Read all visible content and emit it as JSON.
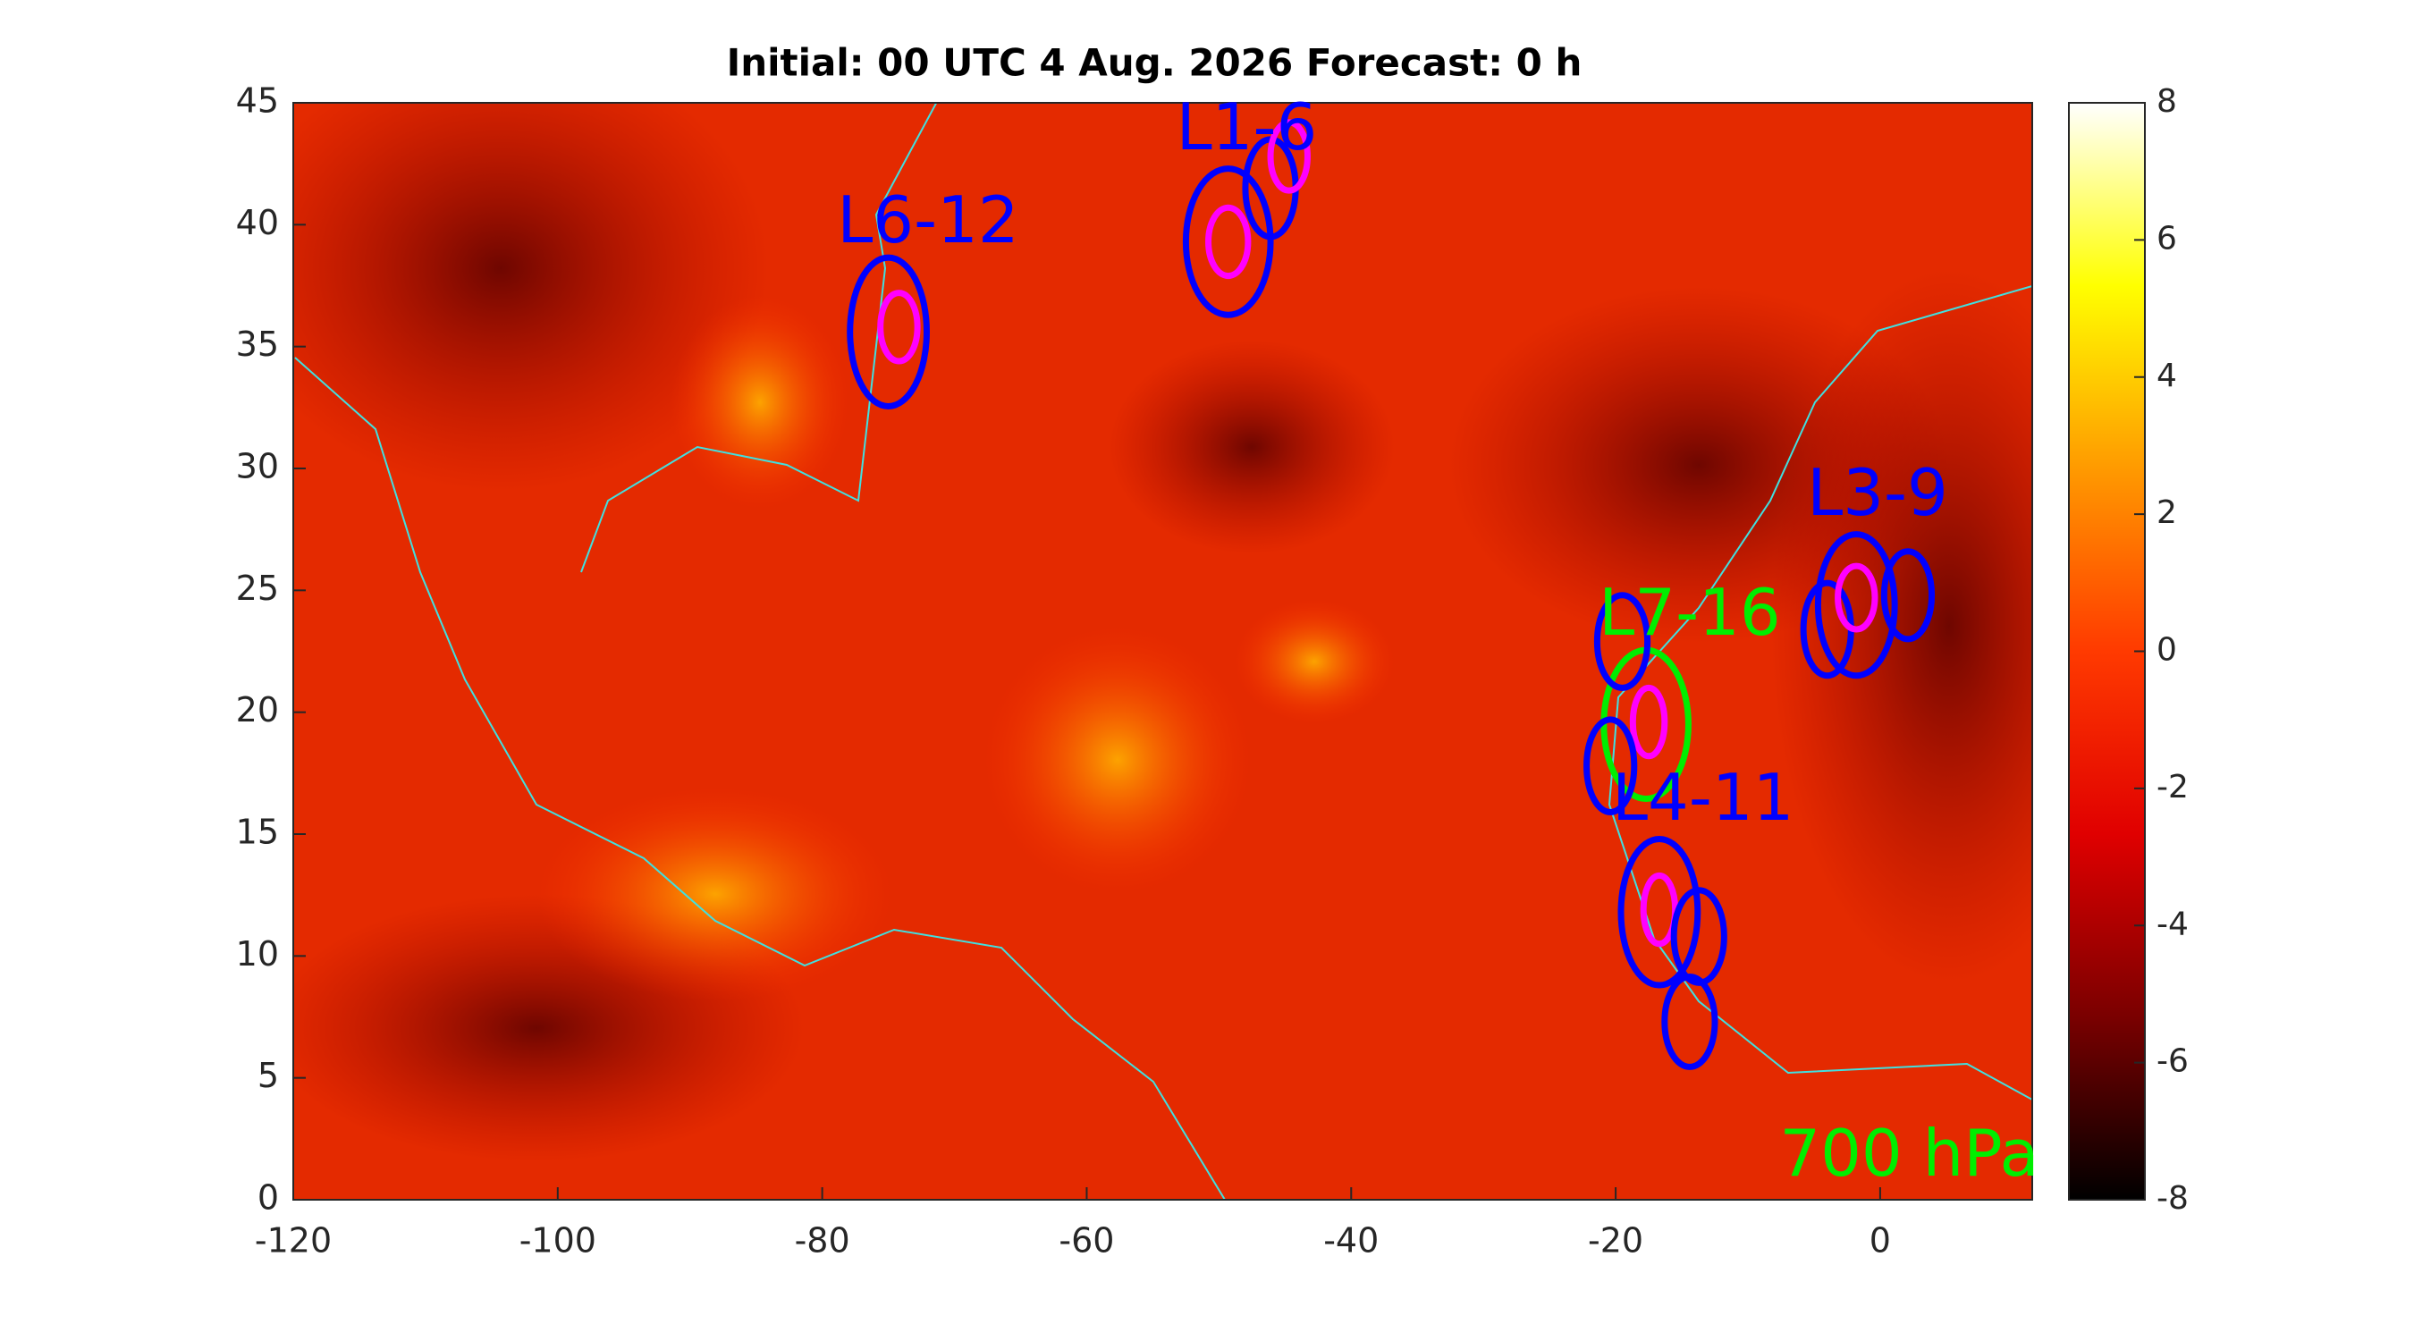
{
  "chart_data": {
    "type": "map",
    "title": "Initial: 00 UTC 4 Aug. 2026 Forecast: 0 h",
    "xlim": [
      -120,
      11.5
    ],
    "ylim": [
      0,
      45
    ],
    "xticks": [
      -120,
      -100,
      -80,
      -60,
      -40,
      -20,
      0
    ],
    "yticks": [
      0,
      5,
      10,
      15,
      20,
      25,
      30,
      35,
      40,
      45
    ],
    "clim": [
      -8,
      8
    ],
    "cticks": [
      -8,
      -6,
      -4,
      -2,
      0,
      2,
      4,
      6,
      8
    ],
    "colormap": [
      "#000000",
      "#7a0000",
      "#e00000",
      "#ff3a00",
      "#ff9a00",
      "#ffff00",
      "#ffffff"
    ],
    "annotations": [
      {
        "text": "L6-12",
        "lon": -72,
        "lat": 40,
        "color": "#0000ff"
      },
      {
        "text": "L1-6",
        "lon": -47.9,
        "lat": 43.8,
        "color": "#0000ff"
      },
      {
        "text": "L3-9",
        "lon": -0.2,
        "lat": 28.8,
        "color": "#0000ff"
      },
      {
        "text": "L7-16",
        "lon": -14.4,
        "lat": 23.9,
        "color": "#00ee00"
      },
      {
        "text": "L4-11",
        "lon": -13.4,
        "lat": 16.3,
        "color": "#0000ff"
      },
      {
        "text": "700 hPa",
        "lon": 2.2,
        "lat": 1.7,
        "color": "#00ee00"
      }
    ],
    "ellipses": [
      {
        "lon": -75.0,
        "lat": 35.6,
        "rx": 2.9,
        "ry": 3.05,
        "color": "#0000ff"
      },
      {
        "lon": -74.2,
        "lat": 35.8,
        "rx": 1.4,
        "ry": 1.4,
        "color": "#ff00ff"
      },
      {
        "lon": -49.3,
        "lat": 39.3,
        "rx": 3.2,
        "ry": 3.0,
        "color": "#0000ff"
      },
      {
        "lon": -49.3,
        "lat": 39.3,
        "rx": 1.5,
        "ry": 1.4,
        "color": "#ff00ff"
      },
      {
        "lon": -46.1,
        "lat": 41.5,
        "rx": 1.9,
        "ry": 2.0,
        "color": "#0000ff"
      },
      {
        "lon": -44.7,
        "lat": 42.8,
        "rx": 1.4,
        "ry": 1.4,
        "color": "#ff00ff"
      },
      {
        "lon": -1.8,
        "lat": 24.4,
        "rx": 2.9,
        "ry": 2.9,
        "color": "#0000ff"
      },
      {
        "lon": -4.0,
        "lat": 23.4,
        "rx": 1.8,
        "ry": 1.9,
        "color": "#0000ff"
      },
      {
        "lon": 2.1,
        "lat": 24.8,
        "rx": 1.8,
        "ry": 1.8,
        "color": "#0000ff"
      },
      {
        "lon": -1.8,
        "lat": 24.7,
        "rx": 1.4,
        "ry": 1.3,
        "color": "#ff00ff"
      },
      {
        "lon": -17.7,
        "lat": 19.5,
        "rx": 3.2,
        "ry": 3.05,
        "color": "#00ee00"
      },
      {
        "lon": -19.5,
        "lat": 22.9,
        "rx": 1.9,
        "ry": 1.9,
        "color": "#0000ff"
      },
      {
        "lon": -17.5,
        "lat": 19.6,
        "rx": 1.2,
        "ry": 1.4,
        "color": "#ff00ff"
      },
      {
        "lon": -20.4,
        "lat": 17.8,
        "rx": 1.8,
        "ry": 1.9,
        "color": "#0000ff"
      },
      {
        "lon": -16.7,
        "lat": 11.8,
        "rx": 2.9,
        "ry": 3.0,
        "color": "#0000ff"
      },
      {
        "lon": -16.7,
        "lat": 11.9,
        "rx": 1.2,
        "ry": 1.4,
        "color": "#ff00ff"
      },
      {
        "lon": -13.7,
        "lat": 10.8,
        "rx": 1.9,
        "ry": 1.9,
        "color": "#0000ff"
      },
      {
        "lon": -14.4,
        "lat": 7.3,
        "rx": 1.9,
        "ry": 1.85,
        "color": "#0000ff"
      }
    ]
  }
}
